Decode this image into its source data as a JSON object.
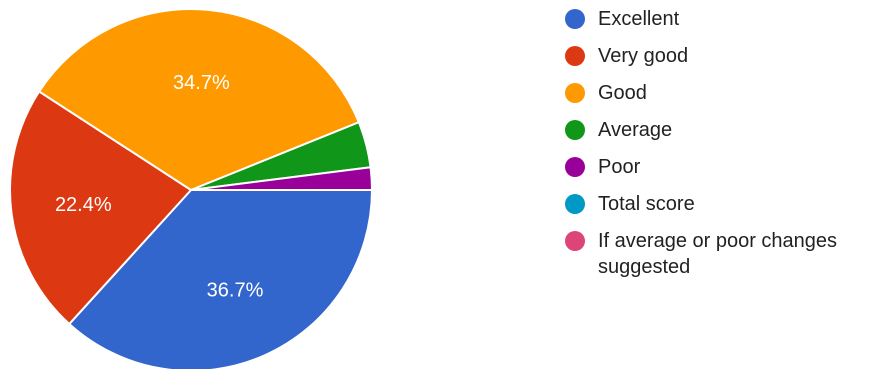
{
  "chart_data": {
    "type": "pie",
    "slices": [
      {
        "label": "Excellent",
        "value": 36.7,
        "display": "36.7%",
        "color": "#3366cc"
      },
      {
        "label": "Very good",
        "value": 22.4,
        "display": "22.4%",
        "color": "#dc3912"
      },
      {
        "label": "Good",
        "value": 34.7,
        "display": "34.7%",
        "color": "#ff9900"
      },
      {
        "label": "Average",
        "value": 4.1,
        "display": "",
        "color": "#109618"
      },
      {
        "label": "Poor",
        "value": 2.0,
        "display": "",
        "color": "#990099"
      },
      {
        "label": "Total score",
        "value": 0,
        "display": "",
        "color": "#0099c6"
      },
      {
        "label": "If average or poor changes suggested",
        "value": 0,
        "display": "",
        "color": "#dd4477"
      }
    ],
    "legend": "right",
    "start_angle_deg": 0,
    "direction": "clockwise"
  }
}
